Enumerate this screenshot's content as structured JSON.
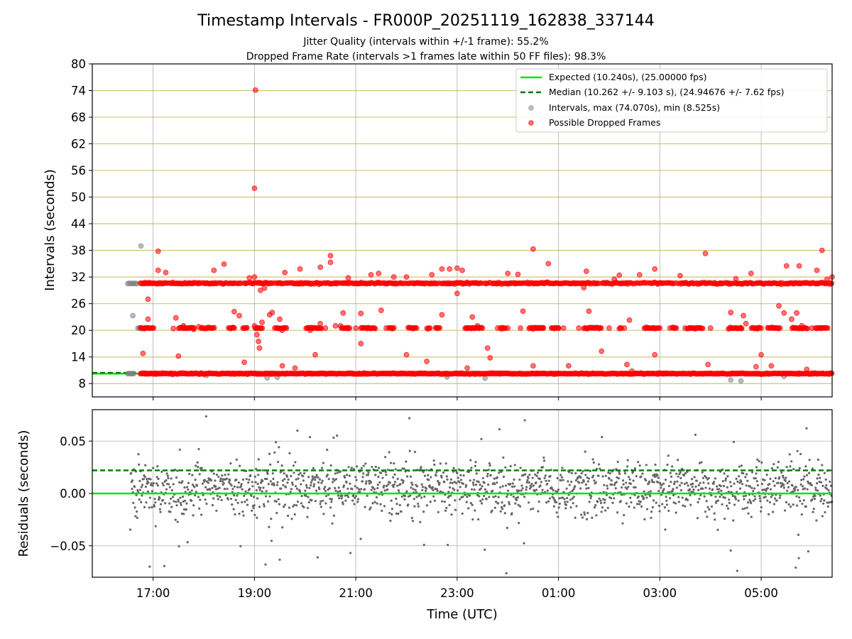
{
  "chart_data": [
    {
      "type": "scatter",
      "title": "Timestamp Intervals - FR000P_20251119_162838_337144",
      "subtitle_lines": [
        "Jitter Quality (intervals within +/-1 frame): 55.2%",
        "Dropped Frame Rate (intervals >1 frames late within 50 FF files): 98.3%"
      ],
      "ylabel": "Intervals (seconds)",
      "x_axis": {
        "unit": "hours since 16:00 UTC 2025-11-19",
        "range": [
          -0.2,
          14.4
        ]
      },
      "ylim": [
        5,
        80
      ],
      "yticks": [
        8,
        14,
        20,
        26,
        32,
        38,
        44,
        50,
        56,
        62,
        68,
        74,
        80
      ],
      "ytick_labels": [
        "8",
        "14",
        "20",
        "26",
        "32",
        "38",
        "44",
        "50",
        "56",
        "62",
        "68",
        "74",
        "80"
      ],
      "horizontal_gridlines": true,
      "gridline_color": "#d4c27a",
      "legend_position": "top-right",
      "legend": [
        "Expected (10.240s), (25.00000 fps)",
        "Median (10.262 +/- 9.103 s), (24.94676 +/- 7.62 fps)",
        "Intervals, max (74.070s), min (8.525s)",
        "Possible Dropped Frames"
      ],
      "expected_line": {
        "value": 10.24,
        "color": "#00e600"
      },
      "median_line": {
        "value": 10.262,
        "color": "#008000"
      },
      "series": [
        {
          "name": "Intervals, max (74.070s), min (8.525s)",
          "color": "#808080",
          "points": [
            [
              0.5,
              10.2
            ],
            [
              0.52,
              10.3
            ],
            [
              0.55,
              10.25
            ],
            [
              0.58,
              10.2
            ],
            [
              0.6,
              10.3
            ],
            [
              0.62,
              10.25
            ],
            [
              0.5,
              30.5
            ],
            [
              0.53,
              30.6
            ],
            [
              0.56,
              30.5
            ],
            [
              0.59,
              30.6
            ],
            [
              0.62,
              30.5
            ],
            [
              0.65,
              30.6
            ],
            [
              0.68,
              30.5
            ],
            [
              0.7,
              20.5
            ],
            [
              0.73,
              20.5
            ],
            [
              0.76,
              20.4
            ],
            [
              0.6,
              23.3
            ],
            [
              0.76,
              39.0
            ],
            [
              2.05,
              9.8
            ],
            [
              3.25,
              9.3
            ],
            [
              3.45,
              9.4
            ],
            [
              6.8,
              9.5
            ],
            [
              7.55,
              9.2
            ],
            [
              12.4,
              8.8
            ],
            [
              12.6,
              8.6
            ],
            [
              13.45,
              9.6
            ]
          ]
        },
        {
          "name": "Possible Dropped Frames",
          "color": "#ff0000",
          "y_levels": [
            10.24,
            20.5,
            30.6
          ],
          "x_start": 0.75,
          "x_end": 14.4,
          "points": [
            [
              0.8,
              14.8
            ],
            [
              0.9,
              27.0
            ],
            [
              0.9,
              22.5
            ],
            [
              1.1,
              37.8
            ],
            [
              1.1,
              33.5
            ],
            [
              1.25,
              33.0
            ],
            [
              1.4,
              20.4
            ],
            [
              1.45,
              22.8
            ],
            [
              1.5,
              14.2
            ],
            [
              1.6,
              21.0
            ],
            [
              1.7,
              20.5
            ],
            [
              1.8,
              20.2
            ],
            [
              1.9,
              20.8
            ],
            [
              2.2,
              33.5
            ],
            [
              2.4,
              34.9
            ],
            [
              2.6,
              20.5
            ],
            [
              2.6,
              24.2
            ],
            [
              2.7,
              23.3
            ],
            [
              2.8,
              12.8
            ],
            [
              2.9,
              31.8
            ],
            [
              3.0,
              32.0
            ],
            [
              3.0,
              21.0
            ],
            [
              3.0,
              52.0
            ],
            [
              3.02,
              74.1
            ],
            [
              3.05,
              19.0
            ],
            [
              3.08,
              17.5
            ],
            [
              3.1,
              16.0
            ],
            [
              3.12,
              29.0
            ],
            [
              3.15,
              21.8
            ],
            [
              3.2,
              29.5
            ],
            [
              3.3,
              23.5
            ],
            [
              3.35,
              24.0
            ],
            [
              3.4,
              20.5
            ],
            [
              3.5,
              22.5
            ],
            [
              3.55,
              20.0
            ],
            [
              3.55,
              12.0
            ],
            [
              3.6,
              33.0
            ],
            [
              3.8,
              11.5
            ],
            [
              3.9,
              33.8
            ],
            [
              4.1,
              20.0
            ],
            [
              4.2,
              14.5
            ],
            [
              4.3,
              34.2
            ],
            [
              4.3,
              21.5
            ],
            [
              4.4,
              20.5
            ],
            [
              4.5,
              36.8
            ],
            [
              4.5,
              35.3
            ],
            [
              4.6,
              21.0
            ],
            [
              4.7,
              21.0
            ],
            [
              4.75,
              23.9
            ],
            [
              4.85,
              31.8
            ],
            [
              5.0,
              20.5
            ],
            [
              5.1,
              17.0
            ],
            [
              5.1,
              23.8
            ],
            [
              5.3,
              32.5
            ],
            [
              5.45,
              32.8
            ],
            [
              5.5,
              24.5
            ],
            [
              5.6,
              20.5
            ],
            [
              5.75,
              32.0
            ],
            [
              6.0,
              32.0
            ],
            [
              6.0,
              14.5
            ],
            [
              6.2,
              20.5
            ],
            [
              6.4,
              13.0
            ],
            [
              6.5,
              32.5
            ],
            [
              6.6,
              20.5
            ],
            [
              6.7,
              33.8
            ],
            [
              6.7,
              23.5
            ],
            [
              6.85,
              33.8
            ],
            [
              7.0,
              34.0
            ],
            [
              7.0,
              28.3
            ],
            [
              7.1,
              33.5
            ],
            [
              7.2,
              20.5
            ],
            [
              7.2,
              11.5
            ],
            [
              7.3,
              23.0
            ],
            [
              7.4,
              21.0
            ],
            [
              7.5,
              20.5
            ],
            [
              7.6,
              16.0
            ],
            [
              7.65,
              13.8
            ],
            [
              7.8,
              20.5
            ],
            [
              8.0,
              20.5
            ],
            [
              8.0,
              32.8
            ],
            [
              8.2,
              32.6
            ],
            [
              8.25,
              20.5
            ],
            [
              8.3,
              24.3
            ],
            [
              8.5,
              38.3
            ],
            [
              8.5,
              12.0
            ],
            [
              8.6,
              20.5
            ],
            [
              8.7,
              20.5
            ],
            [
              8.8,
              35.0
            ],
            [
              8.9,
              20.5
            ],
            [
              9.0,
              20.5
            ],
            [
              9.1,
              20.5
            ],
            [
              9.2,
              12.0
            ],
            [
              9.4,
              20.5
            ],
            [
              9.5,
              29.6
            ],
            [
              9.55,
              33.3
            ],
            [
              9.6,
              24.3
            ],
            [
              9.8,
              20.5
            ],
            [
              9.85,
              15.3
            ],
            [
              10.0,
              20.5
            ],
            [
              10.1,
              31.5
            ],
            [
              10.2,
              32.4
            ],
            [
              10.3,
              20.5
            ],
            [
              10.35,
              12.3
            ],
            [
              10.4,
              22.3
            ],
            [
              10.45,
              10.8
            ],
            [
              10.6,
              32.5
            ],
            [
              10.8,
              20.5
            ],
            [
              10.9,
              33.8
            ],
            [
              10.9,
              14.5
            ],
            [
              11.0,
              20.5
            ],
            [
              11.2,
              20.5
            ],
            [
              11.4,
              32.3
            ],
            [
              11.5,
              20.5
            ],
            [
              11.6,
              20.5
            ],
            [
              11.9,
              37.3
            ],
            [
              11.95,
              12.3
            ],
            [
              12.0,
              20.5
            ],
            [
              12.4,
              24.0
            ],
            [
              12.5,
              31.6
            ],
            [
              12.6,
              20.5
            ],
            [
              12.65,
              23.3
            ],
            [
              12.7,
              21.5
            ],
            [
              12.8,
              32.8
            ],
            [
              12.9,
              11.8
            ],
            [
              13.0,
              14.5
            ],
            [
              13.0,
              20.5
            ],
            [
              13.2,
              12.0
            ],
            [
              13.35,
              25.5
            ],
            [
              13.45,
              23.9
            ],
            [
              13.5,
              34.5
            ],
            [
              13.6,
              22.5
            ],
            [
              13.7,
              23.9
            ],
            [
              13.75,
              34.5
            ],
            [
              13.8,
              21.0
            ],
            [
              13.9,
              11.2
            ],
            [
              14.0,
              20.5
            ],
            [
              14.1,
              33.5
            ],
            [
              14.2,
              20.5
            ],
            [
              14.2,
              38.0
            ],
            [
              14.3,
              31.5
            ],
            [
              14.4,
              32.0
            ]
          ]
        }
      ]
    },
    {
      "type": "scatter",
      "ylabel": "Residuals (seconds)",
      "xlabel": "Time (UTC)",
      "ylim": [
        -0.08,
        0.08
      ],
      "yticks": [
        -0.05,
        0.0,
        0.05
      ],
      "ytick_labels": [
        "−0.05",
        "0.00",
        "0.05"
      ],
      "xticks": [
        1,
        3,
        5,
        7,
        9,
        11,
        13
      ],
      "xtick_labels": [
        "17:00",
        "19:00",
        "21:00",
        "23:00",
        "01:00",
        "03:00",
        "05:00"
      ],
      "x_axis": {
        "unit": "hours since 16:00 UTC 2025-11-19",
        "range": [
          -0.2,
          14.4
        ]
      },
      "horizontal_gridlines": true,
      "vertical_gridlines": true,
      "zero_line": {
        "value": 0.0,
        "color": "#00e600"
      },
      "median_line": {
        "value": 0.022,
        "color": "#008000"
      },
      "series": [
        {
          "name": "Residuals",
          "color": "#666666",
          "x_range": [
            0.55,
            14.4
          ],
          "typical_spread": 0.02,
          "max_abs": 0.078
        }
      ]
    }
  ]
}
